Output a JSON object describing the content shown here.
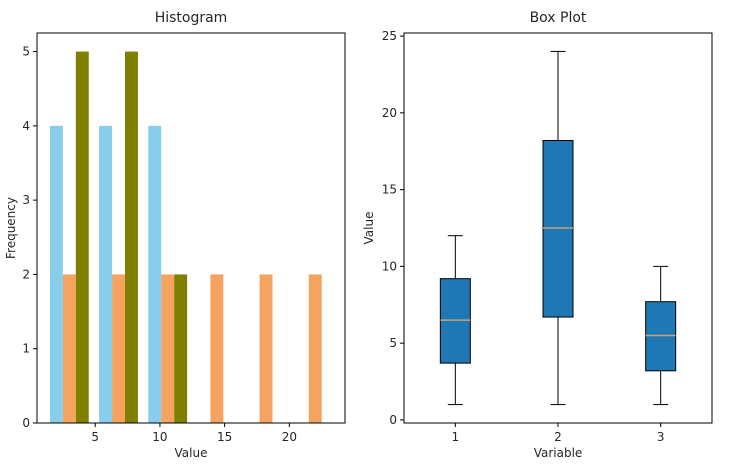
{
  "chart_data": [
    {
      "type": "bar",
      "title": "Histogram",
      "xlabel": "Value",
      "ylabel": "Frequency",
      "xlim": [
        0.5,
        24.3
      ],
      "ylim": [
        0,
        5.25
      ],
      "xticks": [
        5,
        10,
        15,
        20
      ],
      "yticks": [
        0,
        1,
        2,
        3,
        4,
        5
      ],
      "grid": false,
      "legend": "none",
      "bin_width": 1.0,
      "series": [
        {
          "color": "#87CEEB",
          "bins": [
            [
              1.5,
              4
            ],
            [
              5.3,
              4
            ],
            [
              9.1,
              4
            ]
          ]
        },
        {
          "color": "#F4A460",
          "bins": [
            [
              2.5,
              2
            ],
            [
              6.3,
              2
            ],
            [
              10.1,
              2
            ],
            [
              13.9,
              2
            ],
            [
              17.7,
              2
            ],
            [
              21.5,
              2
            ]
          ]
        },
        {
          "color": "#808000",
          "bins": [
            [
              3.5,
              5
            ],
            [
              7.3,
              5
            ],
            [
              11.1,
              2
            ]
          ]
        }
      ]
    },
    {
      "type": "box",
      "title": "Box Plot",
      "xlabel": "Variable",
      "ylabel": "Value",
      "ylim": [
        -0.2,
        25.2
      ],
      "yticks": [
        0,
        5,
        10,
        15,
        20,
        25
      ],
      "categories": [
        "1",
        "2",
        "3"
      ],
      "grid": false,
      "box_color": "#1F77B4",
      "median_color": "#C8A07A",
      "boxes": [
        {
          "whisker_low": 1,
          "q1": 3.7,
          "median": 6.5,
          "q3": 9.2,
          "whisker_high": 12
        },
        {
          "whisker_low": 1,
          "q1": 6.7,
          "median": 12.5,
          "q3": 18.2,
          "whisker_high": 24
        },
        {
          "whisker_low": 1,
          "q1": 3.2,
          "median": 5.5,
          "q3": 7.7,
          "whisker_high": 10
        }
      ]
    }
  ]
}
